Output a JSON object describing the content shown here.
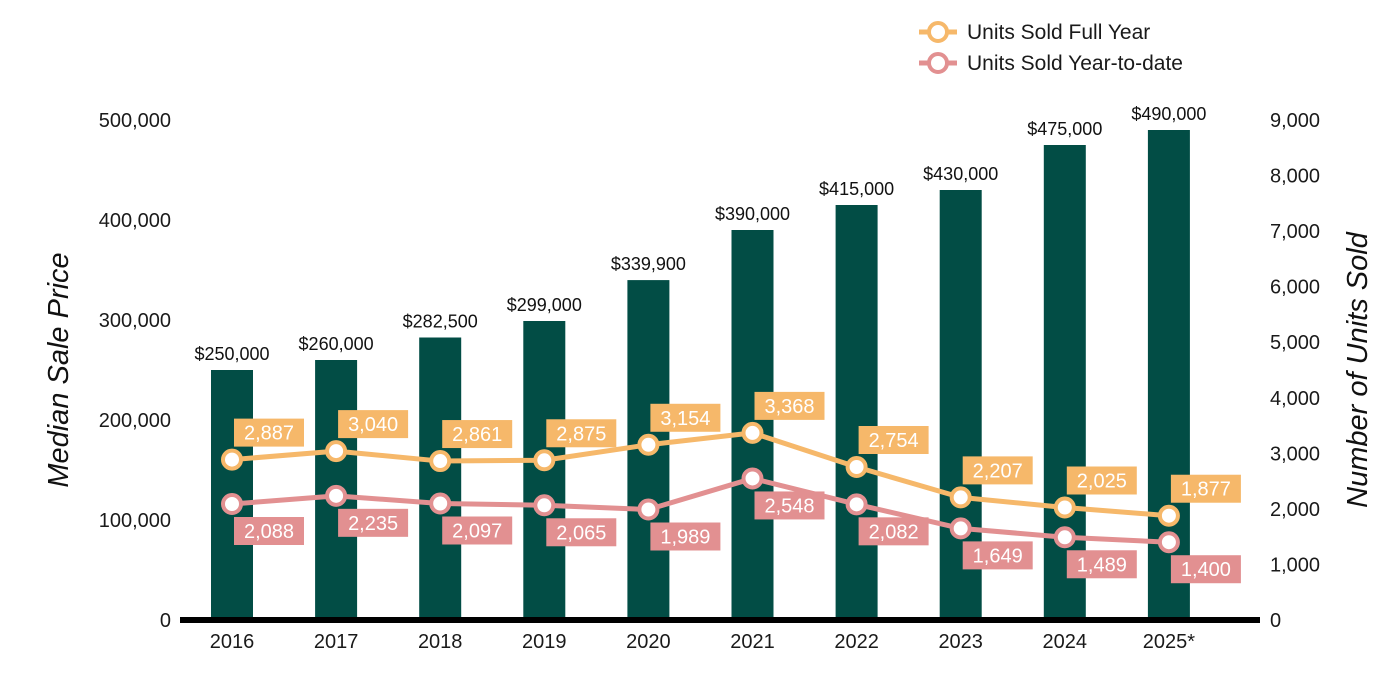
{
  "chart_data": {
    "type": "bar",
    "categories": [
      "2016",
      "2017",
      "2018",
      "2019",
      "2020",
      "2021",
      "2022",
      "2023",
      "2024",
      "2025*"
    ],
    "series": [
      {
        "name": "Median Sale Price",
        "type": "bar",
        "axis": "left",
        "color": "#024d45",
        "values": [
          250000,
          260000,
          282500,
          299000,
          339900,
          390000,
          415000,
          430000,
          475000,
          490000
        ],
        "labels": [
          "$250,000",
          "$260,000",
          "$282,500",
          "$299,000",
          "$339,900",
          "$390,000",
          "$415,000",
          "$430,000",
          "$475,000",
          "$490,000"
        ]
      },
      {
        "name": "Units Sold Full Year",
        "type": "line",
        "axis": "right",
        "color": "#f6b86a",
        "values": [
          2887,
          3040,
          2861,
          2875,
          3154,
          3368,
          2754,
          2207,
          2025,
          1877
        ],
        "labels": [
          "2,887",
          "3,040",
          "2,861",
          "2,875",
          "3,154",
          "3,368",
          "2,754",
          "2,207",
          "2,025",
          "1,877"
        ]
      },
      {
        "name": "Units Sold Year-to-date",
        "type": "line",
        "axis": "right",
        "color": "#e29091",
        "values": [
          2088,
          2235,
          2097,
          2065,
          1989,
          2548,
          2082,
          1649,
          1489,
          1400
        ],
        "labels": [
          "2,088",
          "2,235",
          "2,097",
          "2,065",
          "1,989",
          "2,548",
          "2,082",
          "1,649",
          "1,489",
          "1,400"
        ]
      }
    ],
    "ylabel": "Median Sale Price",
    "y2label": "Number of Units Sold",
    "ylim": [
      0,
      500000
    ],
    "y2lim": [
      0,
      9000
    ],
    "yticks": [
      "0",
      "100,000",
      "200,000",
      "300,000",
      "400,000",
      "500,000"
    ],
    "y2ticks": [
      "0",
      "1,000",
      "2,000",
      "3,000",
      "4,000",
      "5,000",
      "6,000",
      "7,000",
      "8,000",
      "9,000"
    ],
    "legend": {
      "position": "top-right",
      "items": [
        "Units Sold Full Year",
        "Units Sold Year-to-date"
      ]
    },
    "grid": false
  }
}
